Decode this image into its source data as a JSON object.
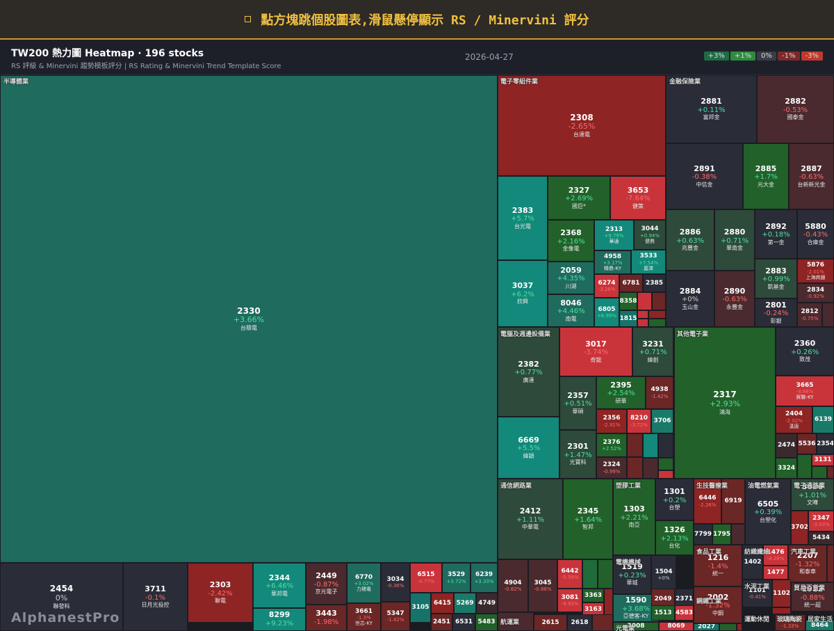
{
  "banner": {
    "text": "點方塊跳個股圖表,滑鼠懸停顯示 RS / Minervini 評分"
  },
  "header": {
    "title": "TW200 熱力圖 Heatmap · 196 stocks",
    "subtitle": "RS 評級 & Minervini 趨勢模板評分 | RS Rating & Minervini Trend Template Score",
    "date": "2026-04-27"
  },
  "legend": [
    {
      "label": "+3%",
      "color": "#1f6b45"
    },
    {
      "label": "+1%",
      "color": "#2e8b3e"
    },
    {
      "label": "0%",
      "color": "#3a3d45"
    },
    {
      "label": "-1%",
      "color": "#7a2a2a"
    },
    {
      "label": "-3%",
      "color": "#c0392b"
    }
  ],
  "watermark": "AlphanestPro",
  "sectors": [
    "半導體業",
    "電子零組件業",
    "金融保險業",
    "電腦及週邊設備業",
    "其他電子業",
    "通信網路業",
    "塑膠工業",
    "生技醫療業",
    "油電燃氣業",
    "電子通路業",
    "食品工業",
    "紡織纖維",
    "汽車工業",
    "電機機械",
    "水泥工業",
    "貿易百貨業",
    "鋼鐵工業",
    "航運業",
    "光電業",
    "運動休閒",
    "玻璃陶瓷",
    "居家生活"
  ],
  "stocks": [
    {
      "code": "2330",
      "change": "+3.66%",
      "name": "台積電"
    },
    {
      "code": "2454",
      "change": "0%",
      "name": "聯發科"
    },
    {
      "code": "3711",
      "change": "-0.1%",
      "name": "日月光投控"
    },
    {
      "code": "2303",
      "change": "-2.42%",
      "name": "聯電"
    },
    {
      "code": "2344",
      "change": "+6.46%",
      "name": "華邦電"
    },
    {
      "code": "8299",
      "change": "+9.23%",
      "name": ""
    },
    {
      "code": "2449",
      "change": "-0.87%",
      "name": "京元電子"
    },
    {
      "code": "3443",
      "change": "-1.98%",
      "name": ""
    },
    {
      "code": "6770",
      "change": "+3.02%",
      "name": "力積電"
    },
    {
      "code": "3661",
      "change": "-1.3%",
      "name": "世芯-KY"
    },
    {
      "code": "3034",
      "change": "-0.36%",
      "name": ""
    },
    {
      "code": "5347",
      "change": "-1.42%",
      "name": ""
    },
    {
      "code": "6515",
      "change": "-4.77%",
      "name": ""
    },
    {
      "code": "3529",
      "change": "+3.72%",
      "name": ""
    },
    {
      "code": "6239",
      "change": "+3.33%",
      "name": ""
    },
    {
      "code": "3105",
      "change": "",
      "name": ""
    },
    {
      "code": "6415",
      "change": "",
      "name": ""
    },
    {
      "code": "5269",
      "change": "",
      "name": ""
    },
    {
      "code": "4749",
      "change": "",
      "name": ""
    },
    {
      "code": "2451",
      "change": "",
      "name": ""
    },
    {
      "code": "6531",
      "change": "",
      "name": ""
    },
    {
      "code": "5483",
      "change": "",
      "name": ""
    },
    {
      "code": "2308",
      "change": "-2.65%",
      "name": "台達電"
    },
    {
      "code": "2383",
      "change": "+5.7%",
      "name": "台光電"
    },
    {
      "code": "3037",
      "change": "+6.2%",
      "name": "欣興"
    },
    {
      "code": "2327",
      "change": "+2.69%",
      "name": "國巨*"
    },
    {
      "code": "3653",
      "change": "-7.64%",
      "name": "健策"
    },
    {
      "code": "2368",
      "change": "+2.16%",
      "name": "金像電"
    },
    {
      "code": "2313",
      "change": "+9.79%",
      "name": "華通"
    },
    {
      "code": "3044",
      "change": "+0.94%",
      "name": "健鼎"
    },
    {
      "code": "4958",
      "change": "+3.17%",
      "name": "臻鼎-KY"
    },
    {
      "code": "2059",
      "change": "+4.35%",
      "name": "川湖"
    },
    {
      "code": "8046",
      "change": "+4.46%",
      "name": "南電"
    },
    {
      "code": "3533",
      "change": "+7.54%",
      "name": "嘉澤"
    },
    {
      "code": "6274",
      "change": "-3.26%",
      "name": ""
    },
    {
      "code": "6781",
      "change": "",
      "name": ""
    },
    {
      "code": "2385",
      "change": "",
      "name": ""
    },
    {
      "code": "8358",
      "change": "",
      "name": ""
    },
    {
      "code": "6805",
      "change": "+6.99%",
      "name": ""
    },
    {
      "code": "1815",
      "change": "",
      "name": ""
    },
    {
      "code": "2881",
      "change": "+0.11%",
      "name": "富邦金"
    },
    {
      "code": "2882",
      "change": "-0.53%",
      "name": "國泰金"
    },
    {
      "code": "2891",
      "change": "-0.38%",
      "name": "中信金"
    },
    {
      "code": "2885",
      "change": "+1.7%",
      "name": "元大金"
    },
    {
      "code": "2887",
      "change": "-0.63%",
      "name": "台新新光金"
    },
    {
      "code": "2886",
      "change": "+0.63%",
      "name": "兆豐金"
    },
    {
      "code": "2880",
      "change": "+0.71%",
      "name": "華南金"
    },
    {
      "code": "2892",
      "change": "+0.18%",
      "name": "第一金"
    },
    {
      "code": "5880",
      "change": "-0.43%",
      "name": "合庫金"
    },
    {
      "code": "2883",
      "change": "+0.99%",
      "name": "凱基金"
    },
    {
      "code": "5876",
      "change": "-2.01%",
      "name": "上海商銀"
    },
    {
      "code": "2834",
      "change": "-0.92%",
      "name": ""
    },
    {
      "code": "2884",
      "change": "+0%",
      "name": "玉山金"
    },
    {
      "code": "2890",
      "change": "-0.63%",
      "name": "永豐金"
    },
    {
      "code": "2801",
      "change": "-0.24%",
      "name": "彰銀"
    },
    {
      "code": "2812",
      "change": "-0.75%",
      "name": ""
    },
    {
      "code": "2382",
      "change": "+0.77%",
      "name": "廣達"
    },
    {
      "code": "6669",
      "change": "+5.5%",
      "name": "緯穎"
    },
    {
      "code": "3017",
      "change": "-3.74%",
      "name": "奇鋐"
    },
    {
      "code": "3231",
      "change": "+0.71%",
      "name": "緯創"
    },
    {
      "code": "2357",
      "change": "+0.51%",
      "name": "華碩"
    },
    {
      "code": "2395",
      "change": "+2.54%",
      "name": "研華"
    },
    {
      "code": "4938",
      "change": "-1.42%",
      "name": ""
    },
    {
      "code": "2356",
      "change": "-2.91%",
      "name": ""
    },
    {
      "code": "8210",
      "change": "-3.72%",
      "name": ""
    },
    {
      "code": "3706",
      "change": "",
      "name": ""
    },
    {
      "code": "2301",
      "change": "+1.47%",
      "name": "光寶科"
    },
    {
      "code": "2376",
      "change": "+2.52%",
      "name": ""
    },
    {
      "code": "2324",
      "change": "-0.99%",
      "name": ""
    },
    {
      "code": "2317",
      "change": "+2.93%",
      "name": "鴻海"
    },
    {
      "code": "2360",
      "change": "+0.26%",
      "name": "致茂"
    },
    {
      "code": "3665",
      "change": "-4.88%",
      "name": "貿聯-KY"
    },
    {
      "code": "2404",
      "change": "-2.02%",
      "name": "漢唐"
    },
    {
      "code": "6139",
      "change": "",
      "name": ""
    },
    {
      "code": "2474",
      "change": "",
      "name": ""
    },
    {
      "code": "5536",
      "change": "",
      "name": ""
    },
    {
      "code": "2354",
      "change": "",
      "name": ""
    },
    {
      "code": "3324",
      "change": "",
      "name": ""
    },
    {
      "code": "3131",
      "change": "",
      "name": ""
    },
    {
      "code": "2412",
      "change": "+1.11%",
      "name": "中華電"
    },
    {
      "code": "2345",
      "change": "+1.64%",
      "name": "智邦"
    },
    {
      "code": "4904",
      "change": "-0.62%",
      "name": ""
    },
    {
      "code": "3045",
      "change": "-0.88%",
      "name": ""
    },
    {
      "code": "6442",
      "change": "-5.59%",
      "name": ""
    },
    {
      "code": "3081",
      "change": "-9.93%",
      "name": ""
    },
    {
      "code": "3363",
      "change": "",
      "name": ""
    },
    {
      "code": "3163",
      "change": "",
      "name": ""
    },
    {
      "code": "1303",
      "change": "+2.21%",
      "name": "南亞"
    },
    {
      "code": "1301",
      "change": "+0.2%",
      "name": "台塑"
    },
    {
      "code": "1326",
      "change": "+2.13%",
      "name": "台化"
    },
    {
      "code": "6446",
      "change": "-2.26%",
      "name": ""
    },
    {
      "code": "6919",
      "change": "",
      "name": ""
    },
    {
      "code": "7799",
      "change": "",
      "name": ""
    },
    {
      "code": "1795",
      "change": "",
      "name": ""
    },
    {
      "code": "6505",
      "change": "+0.39%",
      "name": "台塑化"
    },
    {
      "code": "3036",
      "change": "+1.01%",
      "name": "文曄"
    },
    {
      "code": "3702",
      "change": "",
      "name": ""
    },
    {
      "code": "2347",
      "change": "-3.03%",
      "name": ""
    },
    {
      "code": "5434",
      "change": "",
      "name": ""
    },
    {
      "code": "1216",
      "change": "-1.4%",
      "name": "統一"
    },
    {
      "code": "1402",
      "change": "",
      "name": ""
    },
    {
      "code": "1476",
      "change": "-4.28%",
      "name": ""
    },
    {
      "code": "1477",
      "change": "",
      "name": ""
    },
    {
      "code": "2207",
      "change": "-1.32%",
      "name": "和泰車"
    },
    {
      "code": "1519",
      "change": "+0.23%",
      "name": "華城"
    },
    {
      "code": "1504",
      "change": "+0%",
      "name": ""
    },
    {
      "code": "1590",
      "change": "+3.68%",
      "name": "亞德客-KY"
    },
    {
      "code": "2049",
      "change": "",
      "name": ""
    },
    {
      "code": "2371",
      "change": "",
      "name": ""
    },
    {
      "code": "1513",
      "change": "",
      "name": ""
    },
    {
      "code": "4583",
      "change": "",
      "name": ""
    },
    {
      "code": "1101",
      "change": "-0.41%",
      "name": ""
    },
    {
      "code": "1102",
      "change": "",
      "name": ""
    },
    {
      "code": "2912",
      "change": "-0.88%",
      "name": "統一超"
    },
    {
      "code": "2002",
      "change": "-1.32%",
      "name": "中鋼"
    },
    {
      "code": "2615",
      "change": "",
      "name": ""
    },
    {
      "code": "2618",
      "change": "",
      "name": ""
    },
    {
      "code": "3008",
      "change": "",
      "name": ""
    },
    {
      "code": "8069",
      "change": "",
      "name": ""
    },
    {
      "code": "2027",
      "change": "",
      "name": ""
    },
    {
      "code": "1802",
      "change": "-1.33%",
      "name": ""
    },
    {
      "code": "8464",
      "change": "",
      "name": ""
    }
  ]
}
